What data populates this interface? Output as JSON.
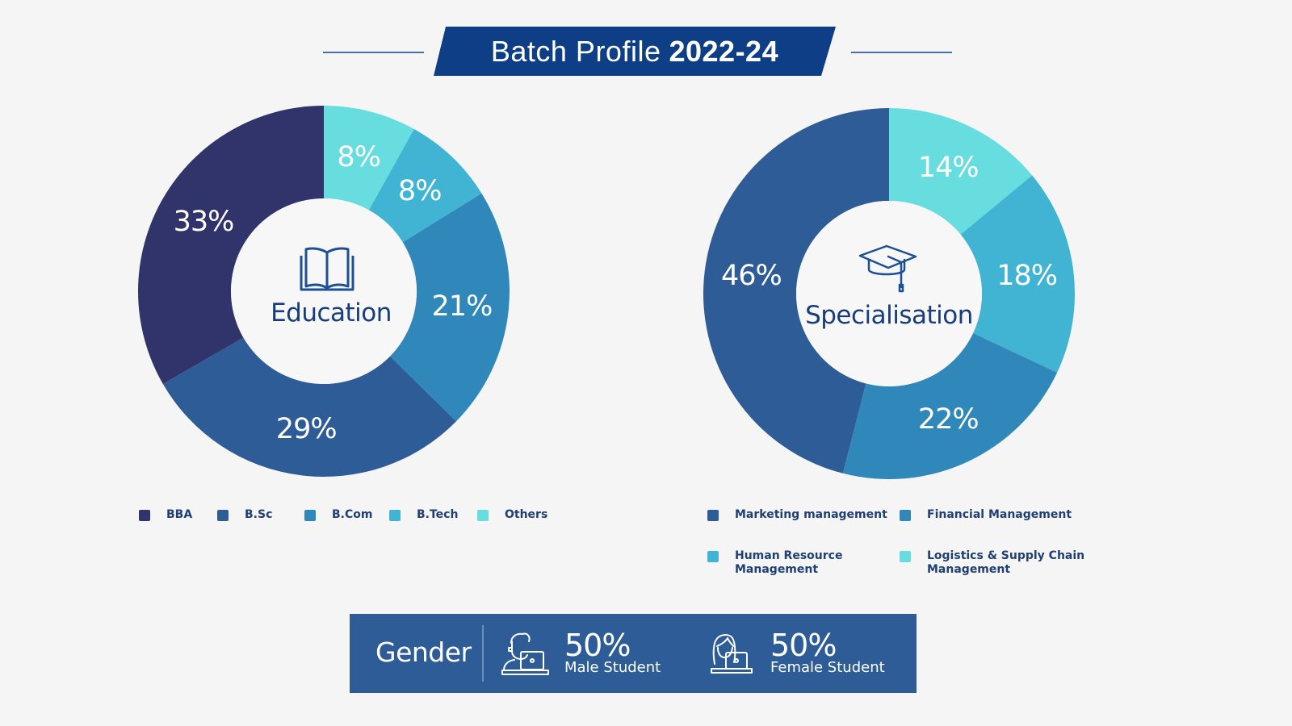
{
  "title": {
    "regular": "Batch Profile",
    "bold": "2022-24"
  },
  "colors": {
    "background": "#f5f5f5",
    "banner": "#0e3f86",
    "rule": "#4a6fa5",
    "text_dark": "#173d7a",
    "gender_bar": "#2e5c97"
  },
  "education": {
    "center_label": "Education",
    "icon": "open-book-icon",
    "legend": [
      {
        "label": "BBA",
        "color": "#31336b"
      },
      {
        "label": "B.Sc",
        "color": "#2e5c97"
      },
      {
        "label": "B.Com",
        "color": "#2f88b9"
      },
      {
        "label": "B.Tech",
        "color": "#40b4d2"
      },
      {
        "label": "Others",
        "color": "#68dde0"
      }
    ]
  },
  "specialisation": {
    "center_label": "Specialisation",
    "icon": "graduation-cap-icon",
    "legend": [
      {
        "label": "Marketing management",
        "color": "#2e5c97"
      },
      {
        "label": "Financial Management",
        "color": "#2f88b9"
      },
      {
        "label": "Human Resource\nManagement",
        "line1": "Human Resource",
        "line2": "Management",
        "color": "#40b4d2"
      },
      {
        "label": "Logistics & Supply Chain\nManagement",
        "line1": "Logistics & Supply Chain",
        "line2": "Management",
        "color": "#68dde0"
      }
    ]
  },
  "gender": {
    "title": "Gender",
    "male": {
      "pct": "50%",
      "label": "Male Student",
      "icon": "male-student-laptop-icon"
    },
    "female": {
      "pct": "50%",
      "label": "Female Student",
      "icon": "female-student-laptop-icon"
    }
  },
  "chart_data": [
    {
      "type": "pie",
      "title": "Education",
      "donut": true,
      "categories": [
        "Others",
        "B.Tech",
        "B.Com",
        "B.Sc",
        "BBA"
      ],
      "values": [
        8,
        8,
        21,
        29,
        33
      ],
      "value_labels": [
        "8%",
        "8%",
        "21%",
        "29%",
        "33%"
      ],
      "colors": [
        "#68dde0",
        "#40b4d2",
        "#2f88b9",
        "#2e5c97",
        "#31336b"
      ],
      "legend_order": [
        "BBA",
        "B.Sc",
        "B.Com",
        "B.Tech",
        "Others"
      ],
      "legend_position": "bottom",
      "start_angle": "12 o'clock, clockwise"
    },
    {
      "type": "pie",
      "title": "Specialisation",
      "donut": true,
      "categories": [
        "Logistics & Supply Chain Management",
        "Human Resource Management",
        "Financial Management",
        "Marketing management"
      ],
      "values": [
        14,
        18,
        22,
        46
      ],
      "value_labels": [
        "14%",
        "18%",
        "22%",
        "46%"
      ],
      "colors": [
        "#68dde0",
        "#40b4d2",
        "#2f88b9",
        "#2e5c97"
      ],
      "legend_order": [
        "Marketing management",
        "Financial Management",
        "Human Resource Management",
        "Logistics & Supply Chain Management"
      ],
      "legend_position": "bottom",
      "start_angle": "12 o'clock, clockwise"
    },
    {
      "type": "table",
      "title": "Gender",
      "categories": [
        "Male Student",
        "Female Student"
      ],
      "values": [
        50,
        50
      ],
      "value_labels": [
        "50%",
        "50%"
      ]
    }
  ]
}
